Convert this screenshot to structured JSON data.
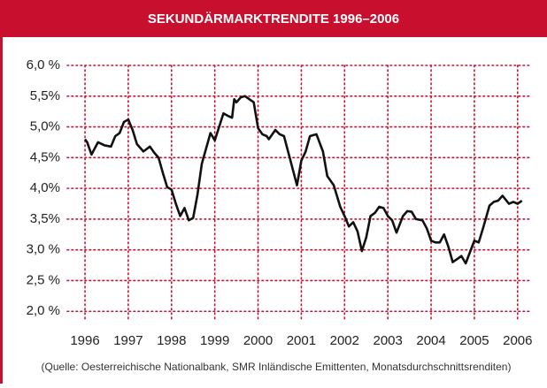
{
  "chart_data": {
    "type": "line",
    "title": "SEKUNDÄRMARKTRENDITE 1996–2006",
    "source": "(Quelle: Oesterreichische Nationalbank, SMR Inländische Emittenten, Monatsdurchschnittsrenditen)",
    "x": [
      1996.0,
      1996.05,
      1996.15,
      1996.3,
      1996.45,
      1996.6,
      1996.7,
      1996.8,
      1996.9,
      1997.0,
      1997.1,
      1997.2,
      1997.35,
      1997.5,
      1997.6,
      1997.7,
      1997.8,
      1997.9,
      1998.0,
      1998.1,
      1998.2,
      1998.3,
      1998.4,
      1998.5,
      1998.6,
      1998.7,
      1998.8,
      1998.9,
      1999.0,
      1999.1,
      1999.2,
      1999.3,
      1999.4,
      1999.45,
      1999.5,
      1999.6,
      1999.7,
      1999.8,
      1999.9,
      2000.0,
      2000.1,
      2000.2,
      2000.25,
      2000.4,
      2000.5,
      2000.6,
      2000.75,
      2000.9,
      2001.0,
      2001.1,
      2001.2,
      2001.35,
      2001.5,
      2001.6,
      2001.75,
      2001.9,
      2002.0,
      2002.1,
      2002.2,
      2002.3,
      2002.4,
      2002.5,
      2002.6,
      2002.7,
      2002.8,
      2002.9,
      2003.0,
      2003.1,
      2003.2,
      2003.35,
      2003.45,
      2003.55,
      2003.65,
      2003.8,
      2003.9,
      2004.0,
      2004.1,
      2004.2,
      2004.3,
      2004.4,
      2004.5,
      2004.6,
      2004.7,
      2004.8,
      2005.0,
      2005.1,
      2005.2,
      2005.35,
      2005.45,
      2005.55,
      2005.65,
      2005.8,
      2005.9,
      2006.0,
      2006.1
    ],
    "series": [
      {
        "name": "Sekundärmarktrendite",
        "color": "#111111",
        "values": [
          4.8,
          4.75,
          4.55,
          4.75,
          4.7,
          4.68,
          4.85,
          4.9,
          5.08,
          5.12,
          4.95,
          4.72,
          4.6,
          4.68,
          4.58,
          4.5,
          4.25,
          4.02,
          3.98,
          3.75,
          3.55,
          3.68,
          3.48,
          3.52,
          3.9,
          4.4,
          4.65,
          4.9,
          4.78,
          5.0,
          5.22,
          5.18,
          5.15,
          5.45,
          5.4,
          5.48,
          5.5,
          5.45,
          5.4,
          4.98,
          4.88,
          4.85,
          4.8,
          4.95,
          4.88,
          4.85,
          4.45,
          4.05,
          4.45,
          4.6,
          4.85,
          4.88,
          4.6,
          4.2,
          4.05,
          3.7,
          3.55,
          3.38,
          3.45,
          3.3,
          2.98,
          3.2,
          3.55,
          3.6,
          3.7,
          3.68,
          3.55,
          3.48,
          3.28,
          3.55,
          3.63,
          3.62,
          3.5,
          3.48,
          3.35,
          3.15,
          3.12,
          3.12,
          3.25,
          3.05,
          2.8,
          2.85,
          2.9,
          2.78,
          3.15,
          3.12,
          3.35,
          3.72,
          3.78,
          3.8,
          3.88,
          3.75,
          3.78,
          3.75,
          3.8
        ]
      }
    ],
    "xlim": [
      1995.59,
      2006.27
    ],
    "xticks": [
      1996,
      1997,
      1998,
      1999,
      2000,
      2001,
      2002,
      2003,
      2004,
      2005,
      2006
    ],
    "ylim": [
      1.86,
      6.0
    ],
    "yticks": [
      {
        "value": 2.0,
        "label": "2,0 %"
      },
      {
        "value": 2.5,
        "label": "2,5 %"
      },
      {
        "value": 3.0,
        "label": "3,0 %"
      },
      {
        "value": 3.5,
        "label": "3,5%"
      },
      {
        "value": 4.0,
        "label": "4,0%"
      },
      {
        "value": 4.5,
        "label": "4,5%"
      },
      {
        "value": 5.0,
        "label": "5,0%"
      },
      {
        "value": 5.5,
        "label": "5,5%"
      },
      {
        "value": 6.0,
        "label": "6,0 %"
      }
    ],
    "grid": true,
    "grid_color": "#c8102e",
    "header_color": "#c8102e"
  }
}
